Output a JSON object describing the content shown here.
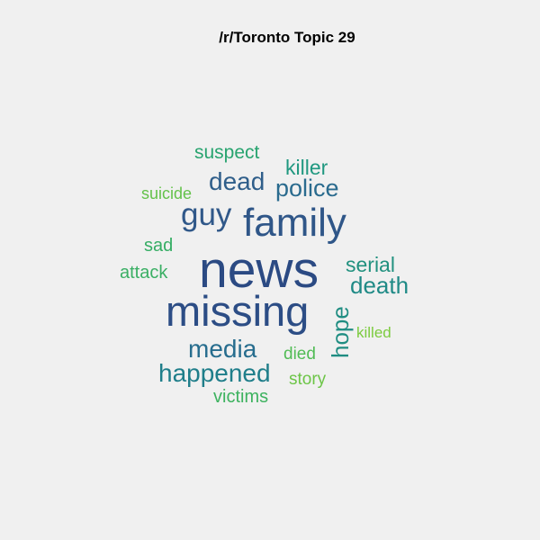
{
  "title": "/r/Toronto Topic 29",
  "words": [
    {
      "text": "news",
      "color": "#2b4a83"
    },
    {
      "text": "missing",
      "color": "#2c4d85"
    },
    {
      "text": "family",
      "color": "#2f5688"
    },
    {
      "text": "guy",
      "color": "#305889"
    },
    {
      "text": "police",
      "color": "#2a6b8e"
    },
    {
      "text": "dead",
      "color": "#2f5e8a"
    },
    {
      "text": "media",
      "color": "#276d8e"
    },
    {
      "text": "happened",
      "color": "#1f7e8a"
    },
    {
      "text": "death",
      "color": "#1f8a86"
    },
    {
      "text": "hope",
      "color": "#1f8d82"
    },
    {
      "text": "serial",
      "color": "#21917f"
    },
    {
      "text": "killer",
      "color": "#209880"
    },
    {
      "text": "suspect",
      "color": "#28a46f"
    },
    {
      "text": "sad",
      "color": "#35ad64"
    },
    {
      "text": "attack",
      "color": "#3aaf64"
    },
    {
      "text": "victims",
      "color": "#3db25f"
    },
    {
      "text": "died",
      "color": "#51bc55"
    },
    {
      "text": "suicide",
      "color": "#64c24a"
    },
    {
      "text": "story",
      "color": "#6cc547"
    },
    {
      "text": "killed",
      "color": "#7ccb3f"
    }
  ]
}
